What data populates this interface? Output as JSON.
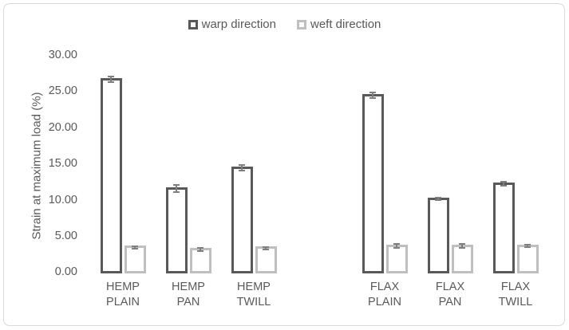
{
  "frame": {
    "background": "#ffffff",
    "border_color": "#d9d9d9",
    "text_color": "#595959"
  },
  "chart_data": {
    "type": "bar",
    "title": "",
    "categories": [
      "HEMP PLAIN",
      "HEMP PAN",
      "HEMP TWILL",
      "FLAX PLAIN",
      "FLAX PAN",
      "FLAX TWILL"
    ],
    "category_lines": [
      [
        "HEMP",
        "PLAIN"
      ],
      [
        "HEMP",
        "PAN"
      ],
      [
        "HEMP",
        "TWILL"
      ],
      [
        "FLAX",
        "PLAIN"
      ],
      [
        "FLAX",
        "PAN"
      ],
      [
        "FLAX",
        "TWILL"
      ]
    ],
    "group_slots": [
      0,
      1,
      2,
      4,
      5,
      6
    ],
    "total_slots": 7,
    "series": [
      {
        "name": "warp direction",
        "color": "#595959",
        "values": [
          26.6,
          11.5,
          14.4,
          24.4,
          10.1,
          12.2
        ],
        "errors": [
          0.4,
          0.5,
          0.35,
          0.4,
          0.15,
          0.3
        ]
      },
      {
        "name": "weft direction",
        "color": "#bfbfbf",
        "values": [
          3.4,
          3.1,
          3.3,
          3.6,
          3.6,
          3.6
        ],
        "errors": [
          0.2,
          0.2,
          0.2,
          0.3,
          0.3,
          0.15
        ]
      }
    ],
    "bar_fill": "#ffffff",
    "error_bar_color": "#7f7f7f",
    "xlabel": "",
    "ylabel": "Strain at maximum load (%)",
    "ylim": [
      0,
      30
    ],
    "y_ticks": [
      "0.00",
      "5.00",
      "10.00",
      "15.00",
      "20.00",
      "25.00",
      "30.00"
    ],
    "grid": false,
    "legend_position": "top-center"
  }
}
